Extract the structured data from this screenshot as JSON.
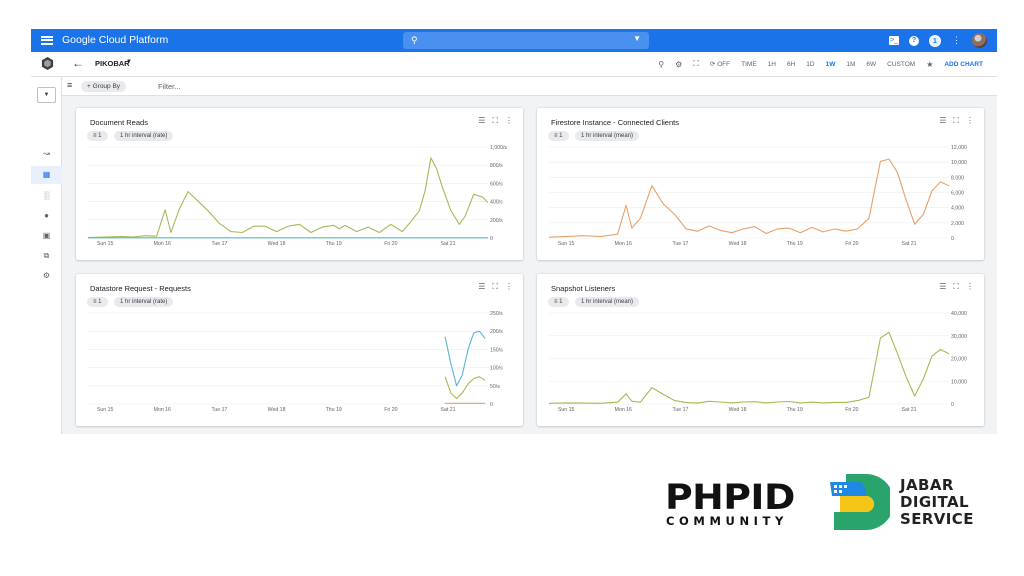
{
  "topbar": {
    "brand": "Google Cloud Platform",
    "notification_count": "1"
  },
  "subbar": {
    "project": "PIKOBAR",
    "autorefresh": "OFF",
    "time_label": "TIME",
    "ranges": [
      "1H",
      "6H",
      "1D",
      "1W",
      "1M",
      "6W",
      "CUSTOM"
    ],
    "active_range": "1W",
    "add_chart": "ADD CHART"
  },
  "filterbar": {
    "group_by": "+ Group By",
    "filter_placeholder": "Filter..."
  },
  "sidebar": {
    "icons": [
      "line-chart-icon",
      "dashboard-icon",
      "bar-chart-icon",
      "bell-icon",
      "monitor-icon",
      "copy-icon",
      "gear-icon"
    ],
    "selected": 1
  },
  "colors": {
    "series_green": "#a8b855",
    "series_orange": "#e8a06a",
    "series_blue": "#5ab4d6",
    "accent": "#1a73e8"
  },
  "cards": [
    {
      "title": "Document Reads",
      "pill_count": "1",
      "pill_interval": "1 hr interval (rate)"
    },
    {
      "title": "Firestore Instance - Connected Clients",
      "pill_count": "1",
      "pill_interval": "1 hr interval (mean)"
    },
    {
      "title": "Datastore Request - Requests",
      "pill_count": "1",
      "pill_interval": "1 hr interval (rate)"
    },
    {
      "title": "Snapshot Listeners",
      "pill_count": "1",
      "pill_interval": "1 hr interval (mean)"
    }
  ],
  "chart_data": [
    {
      "type": "line",
      "title": "Document Reads",
      "x_ticks": [
        "Sun 15",
        "Mon 16",
        "Tue 17",
        "Wed 18",
        "Thu 19",
        "Fri 20",
        "Sat 21"
      ],
      "y_ticks": [
        "1,000/s",
        "800/s",
        "600/s",
        "400/s",
        "200/s",
        "0"
      ],
      "ylim": [
        0,
        1000
      ],
      "xlim": [
        14.7,
        21.7
      ],
      "series": [
        {
          "color": "#a8b855",
          "x": [
            14.7,
            15.0,
            15.3,
            15.5,
            15.7,
            15.9,
            16.05,
            16.15,
            16.3,
            16.45,
            16.6,
            16.8,
            17.0,
            17.2,
            17.4,
            17.6,
            17.8,
            18.0,
            18.2,
            18.4,
            18.6,
            18.8,
            19.0,
            19.1,
            19.2,
            19.4,
            19.6,
            19.8,
            20.0,
            20.2,
            20.35,
            20.5,
            20.6,
            20.7,
            20.8,
            20.9,
            21.05,
            21.2,
            21.3,
            21.45,
            21.6,
            21.7
          ],
          "y": [
            5,
            10,
            15,
            10,
            25,
            20,
            310,
            60,
            320,
            510,
            420,
            300,
            160,
            70,
            60,
            130,
            130,
            70,
            130,
            150,
            60,
            120,
            140,
            100,
            140,
            70,
            120,
            60,
            150,
            70,
            180,
            300,
            520,
            880,
            760,
            560,
            300,
            150,
            240,
            480,
            450,
            390
          ]
        },
        {
          "color": "#5ab4d6",
          "x": [
            14.7,
            21.7
          ],
          "y": [
            2,
            2
          ]
        }
      ]
    },
    {
      "type": "line",
      "title": "Firestore Instance - Connected Clients",
      "x_ticks": [
        "Sun 15",
        "Mon 16",
        "Tue 17",
        "Wed 18",
        "Thu 19",
        "Fri 20",
        "Sat 21"
      ],
      "y_ticks": [
        "12,000",
        "10,000",
        "8,000",
        "6,000",
        "4,000",
        "2,000",
        "0"
      ],
      "ylim": [
        0,
        12000
      ],
      "xlim": [
        14.7,
        21.7
      ],
      "series": [
        {
          "color": "#e8a06a",
          "x": [
            14.7,
            15.0,
            15.3,
            15.6,
            15.9,
            16.05,
            16.15,
            16.3,
            16.5,
            16.7,
            16.9,
            17.1,
            17.3,
            17.5,
            17.7,
            17.9,
            18.1,
            18.3,
            18.5,
            18.7,
            18.9,
            19.1,
            19.3,
            19.5,
            19.7,
            19.9,
            20.1,
            20.3,
            20.5,
            20.65,
            20.8,
            20.95,
            21.1,
            21.25,
            21.4,
            21.55,
            21.7
          ],
          "y": [
            100,
            200,
            300,
            200,
            500,
            4300,
            1300,
            2600,
            6900,
            4500,
            3100,
            1200,
            900,
            1600,
            1000,
            700,
            1200,
            1500,
            600,
            1200,
            1300,
            700,
            1400,
            800,
            1200,
            900,
            1200,
            2600,
            10100,
            10400,
            8600,
            5000,
            1800,
            3100,
            6200,
            7400,
            6900
          ]
        }
      ]
    },
    {
      "type": "line",
      "title": "Datastore Request - Requests",
      "x_ticks": [
        "Sun 15",
        "Mon 16",
        "Tue 17",
        "Wed 18",
        "Thu 19",
        "Fri 20",
        "Sat 21"
      ],
      "y_ticks": [
        "250/s",
        "200/s",
        "150/s",
        "100/s",
        "50/s",
        "0"
      ],
      "ylim": [
        0,
        250
      ],
      "xlim": [
        14.7,
        21.7
      ],
      "series": [
        {
          "color": "#5ab4d6",
          "x": [
            20.95,
            21.05,
            21.15,
            21.25,
            21.35,
            21.45,
            21.55,
            21.65
          ],
          "y": [
            185,
            110,
            50,
            80,
            150,
            195,
            200,
            180
          ]
        },
        {
          "color": "#a8b855",
          "x": [
            20.95,
            21.05,
            21.15,
            21.25,
            21.35,
            21.45,
            21.55,
            21.65
          ],
          "y": [
            75,
            30,
            15,
            30,
            55,
            70,
            75,
            65
          ]
        },
        {
          "color": "#e8a06a",
          "x": [
            20.95,
            21.65
          ],
          "y": [
            2,
            2
          ]
        }
      ]
    },
    {
      "type": "line",
      "title": "Snapshot Listeners",
      "x_ticks": [
        "Sun 15",
        "Mon 16",
        "Tue 17",
        "Wed 18",
        "Thu 19",
        "Fri 20",
        "Sat 21"
      ],
      "y_ticks": [
        "40,000",
        "30,000",
        "20,000",
        "10,000",
        "0"
      ],
      "ylim": [
        0,
        40000
      ],
      "xlim": [
        14.7,
        21.7
      ],
      "series": [
        {
          "color": "#a8b855",
          "x": [
            14.7,
            15.0,
            15.3,
            15.6,
            15.9,
            16.05,
            16.15,
            16.3,
            16.5,
            16.7,
            16.9,
            17.1,
            17.3,
            17.5,
            17.7,
            17.9,
            18.1,
            18.3,
            18.5,
            18.7,
            18.9,
            19.1,
            19.3,
            19.5,
            19.7,
            19.9,
            20.1,
            20.3,
            20.5,
            20.65,
            20.8,
            20.95,
            21.1,
            21.25,
            21.4,
            21.55,
            21.7
          ],
          "y": [
            300,
            500,
            400,
            300,
            800,
            4500,
            1200,
            800,
            7200,
            4200,
            1500,
            600,
            400,
            1200,
            900,
            500,
            900,
            1000,
            500,
            900,
            1100,
            500,
            800,
            500,
            700,
            700,
            1500,
            3000,
            29000,
            31500,
            22000,
            12000,
            3500,
            11000,
            21000,
            24000,
            22000
          ]
        }
      ]
    }
  ],
  "logos": {
    "phpid_main": "PHPID",
    "phpid_sub": "COMMUNITY",
    "jds_lines": [
      "JABAR",
      "DIGITAL",
      "SERVICE"
    ]
  }
}
